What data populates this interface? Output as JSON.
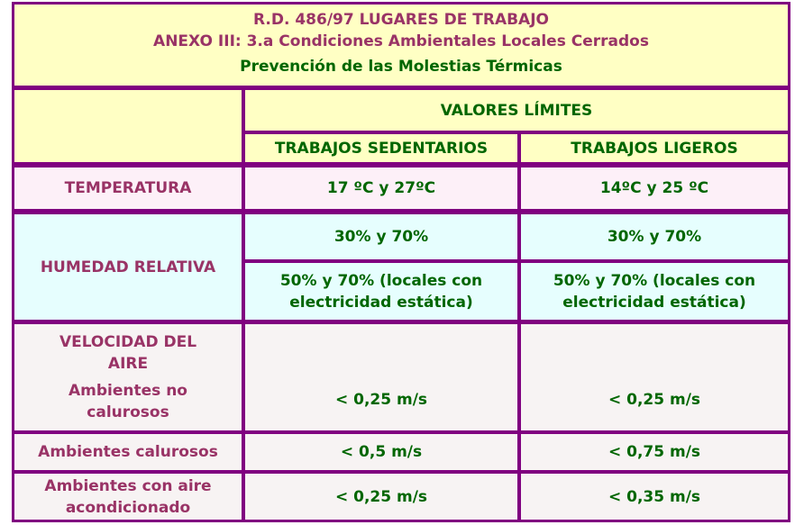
{
  "header": {
    "title": "R.D. 486/97 LUGARES DE TRABAJO",
    "subtitle": "ANEXO III: 3.a Condiciones Ambientales Locales Cerrados",
    "section": "Prevención de las Molestias Térmicas"
  },
  "table": {
    "group_header": "VALORES LÍMITES",
    "columns": [
      "TRABAJOS SEDENTARIOS",
      "TRABAJOS LIGEROS"
    ],
    "temperature": {
      "label": "TEMPERATURA",
      "values": [
        "17 ºC y 27ºC",
        "14ºC y 25 ºC"
      ]
    },
    "humidity": {
      "label": "HUMEDAD RELATIVA",
      "rows": [
        [
          "30% y 70%",
          "30% y 70%"
        ],
        [
          "50% y 70% (locales con electricidad estática)",
          "50% y 70% (locales con electricidad estática)"
        ]
      ]
    },
    "air_speed": {
      "label": "VELOCIDAD DEL AIRE",
      "rows": [
        {
          "label": "Ambientes no calurosos",
          "values": [
            "< 0,25 m/s",
            "< 0,25 m/s"
          ]
        },
        {
          "label": "Ambientes calurosos",
          "values": [
            "< 0,5 m/s",
            "< 0,75 m/s"
          ]
        },
        {
          "label": "Ambientes con aire acondicionado",
          "values": [
            "< 0,25 m/s",
            "< 0,35 m/s"
          ]
        }
      ]
    }
  }
}
